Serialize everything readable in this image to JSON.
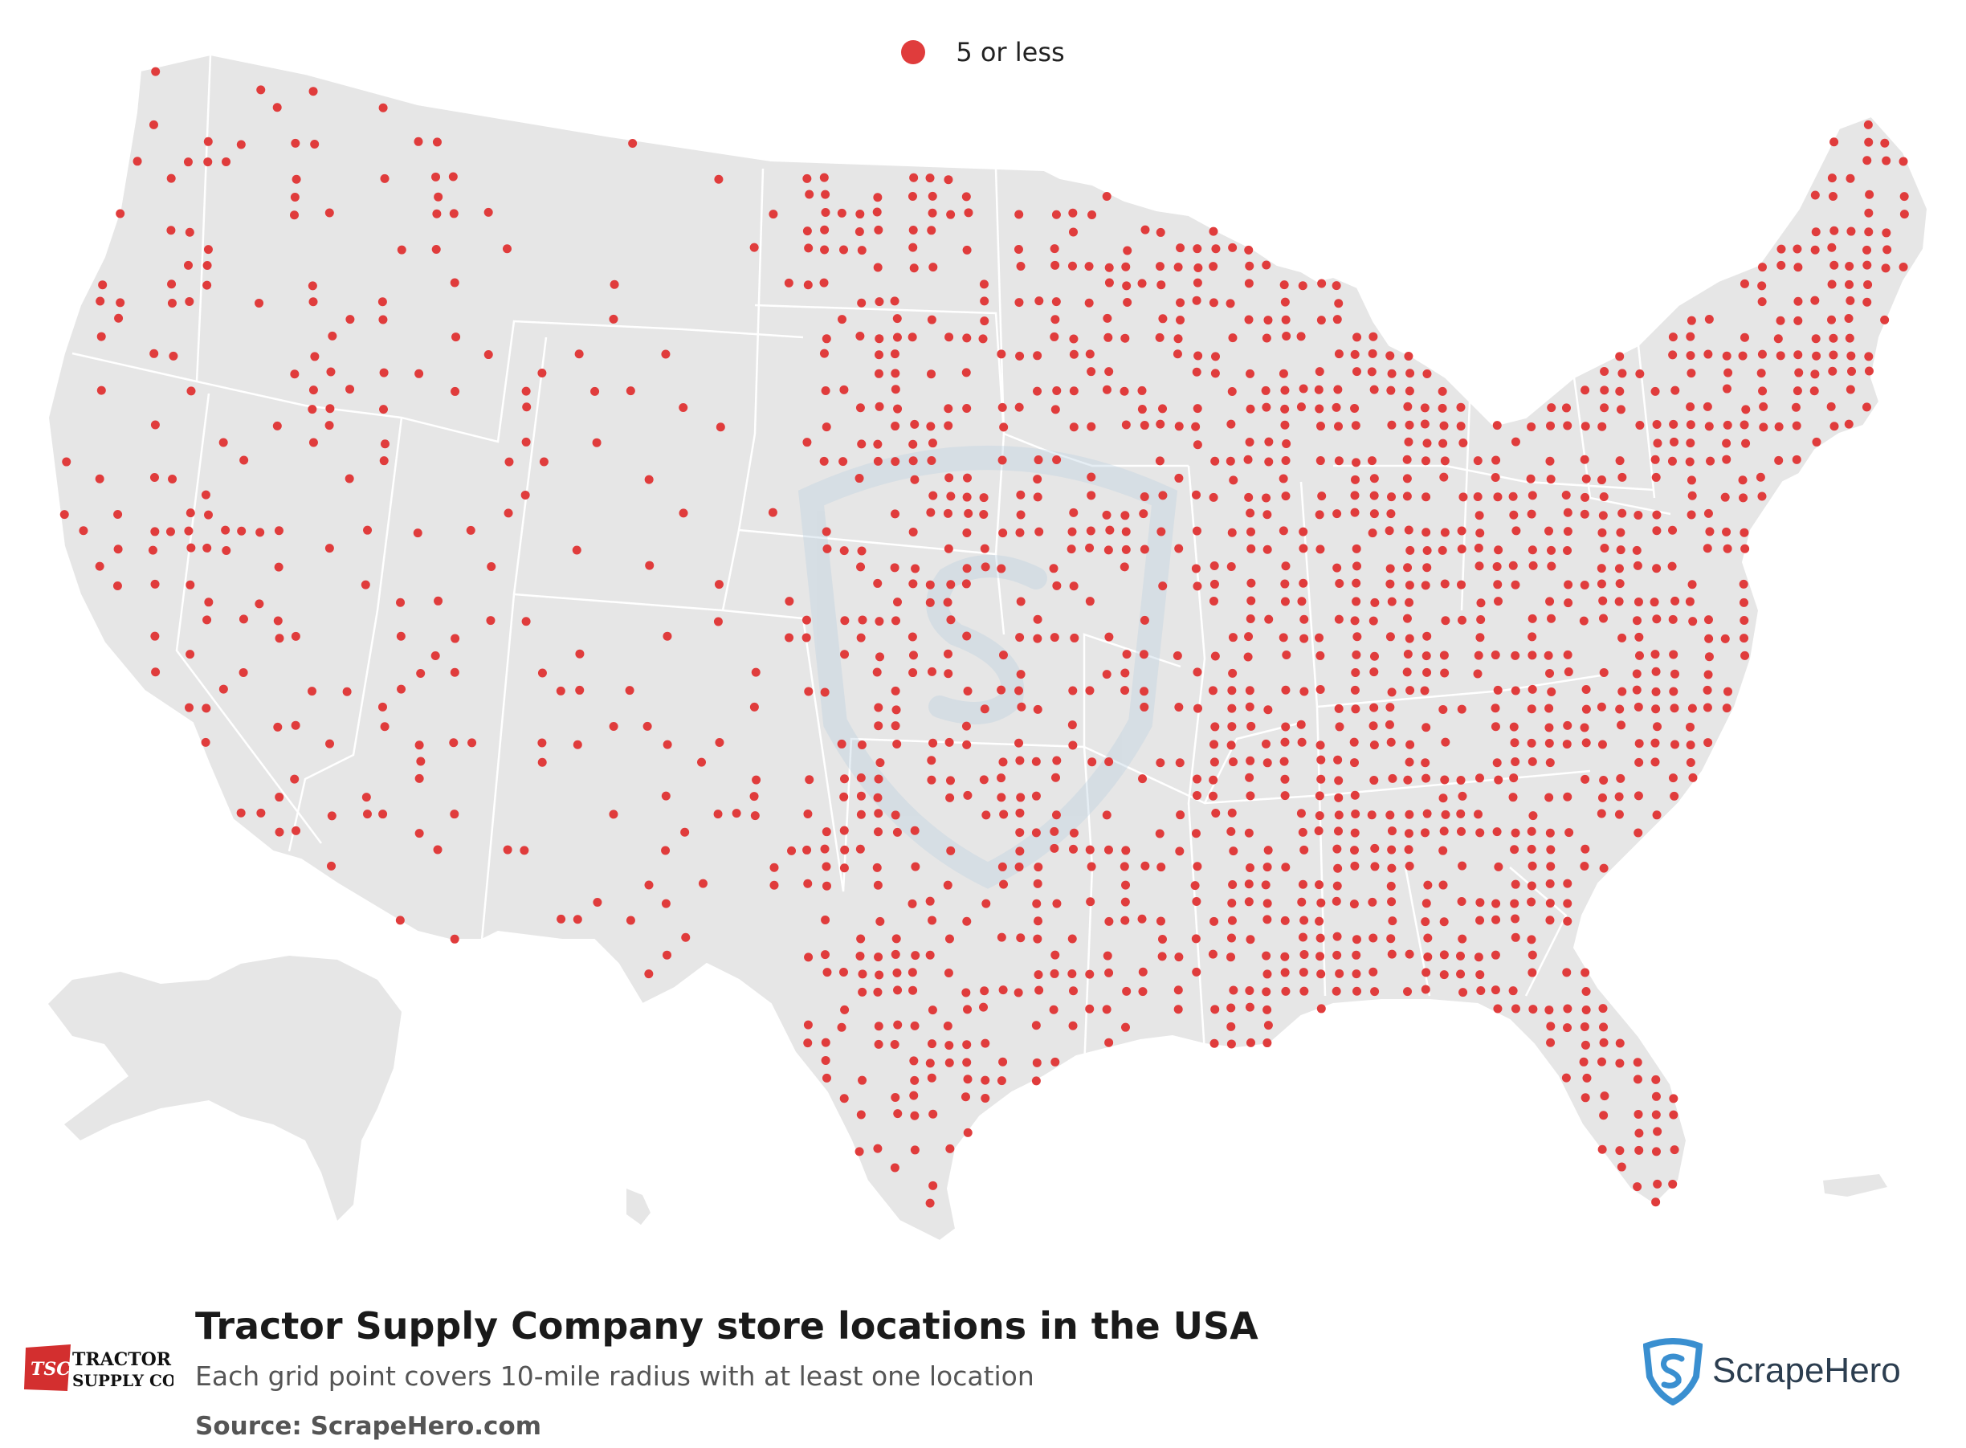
{
  "legend": {
    "label": "5 or less",
    "color": "#e03c3c"
  },
  "title": "Tractor Supply Company store locations in the USA",
  "subtitle": "Each grid point covers 10-mile radius with at least one location",
  "source": "Source: ScrapeHero.com",
  "brand_logo": {
    "line1": "TRACTOR",
    "line2": "SUPPLY CO",
    "badge": "TSC"
  },
  "scrapehero_logo": {
    "name": "ScrapeHero",
    "icon": "shield-s-icon"
  },
  "watermark": {
    "icon": "shield-s-icon"
  },
  "colors": {
    "land": "#e6e6e6",
    "borders": "#ffffff",
    "dot": "#e03c3c",
    "logo_blue": "#3a8fd0"
  },
  "map_data": {
    "type": "dot-map",
    "region": "USA",
    "dot_category": "5 or less",
    "dot_meaning": "Each grid point covers 10-mile radius with at least one location"
  }
}
